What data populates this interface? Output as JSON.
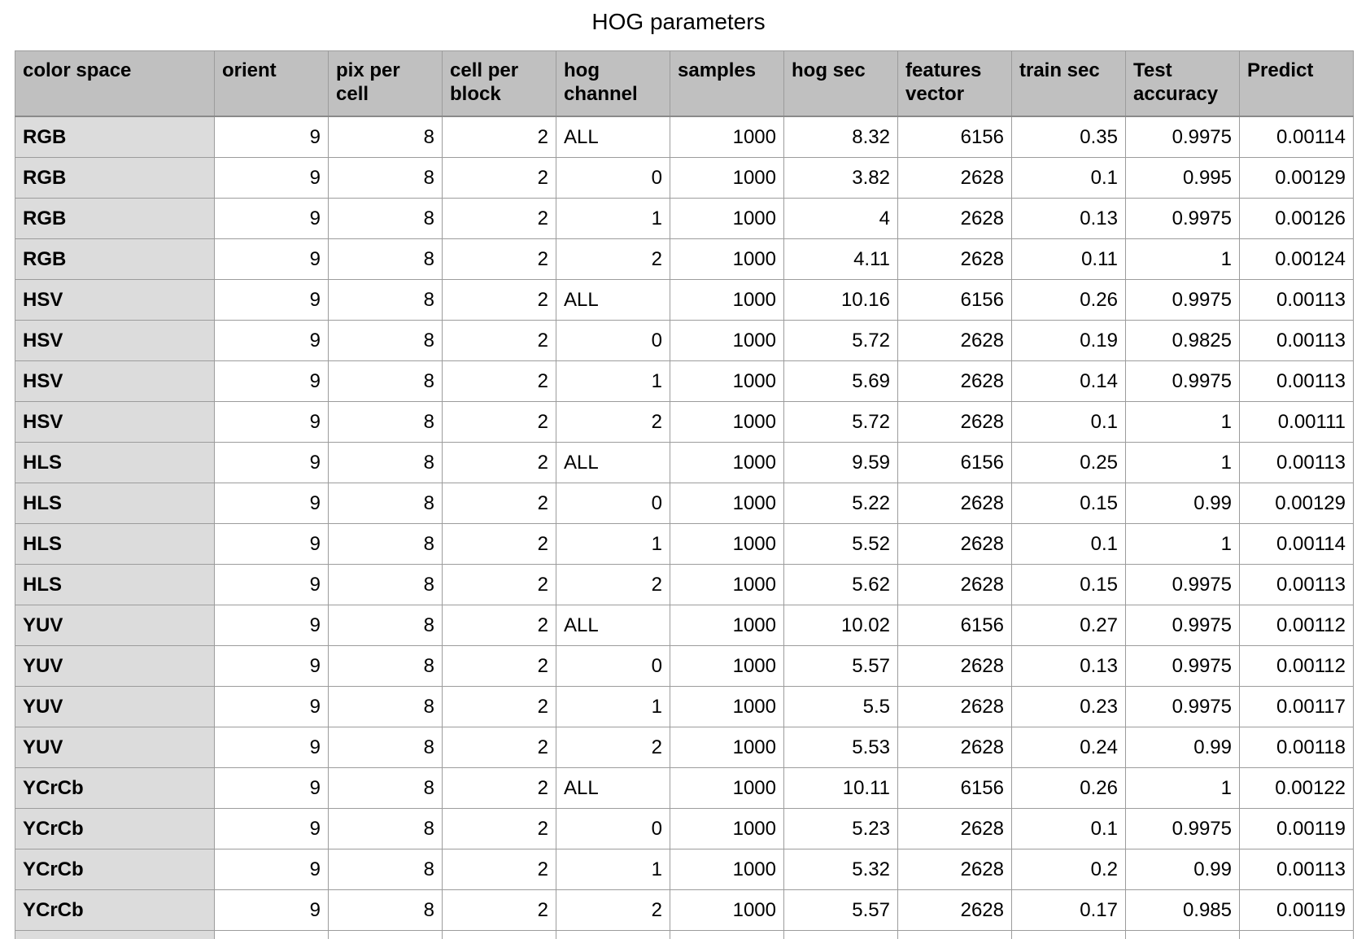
{
  "title": "HOG parameters",
  "headers": [
    "color space",
    "orient",
    "pix per cell",
    "cell per block",
    "hog channel",
    "samples",
    "hog sec",
    "features vector",
    "train sec",
    "Test accuracy",
    "Predict"
  ],
  "rows": [
    [
      "RGB",
      "9",
      "8",
      "2",
      "ALL",
      "1000",
      "8.32",
      "6156",
      "0.35",
      "0.9975",
      "0.00114"
    ],
    [
      "RGB",
      "9",
      "8",
      "2",
      "0",
      "1000",
      "3.82",
      "2628",
      "0.1",
      "0.995",
      "0.00129"
    ],
    [
      "RGB",
      "9",
      "8",
      "2",
      "1",
      "1000",
      "4",
      "2628",
      "0.13",
      "0.9975",
      "0.00126"
    ],
    [
      "RGB",
      "9",
      "8",
      "2",
      "2",
      "1000",
      "4.11",
      "2628",
      "0.11",
      "1",
      "0.00124"
    ],
    [
      "HSV",
      "9",
      "8",
      "2",
      "ALL",
      "1000",
      "10.16",
      "6156",
      "0.26",
      "0.9975",
      "0.00113"
    ],
    [
      "HSV",
      "9",
      "8",
      "2",
      "0",
      "1000",
      "5.72",
      "2628",
      "0.19",
      "0.9825",
      "0.00113"
    ],
    [
      "HSV",
      "9",
      "8",
      "2",
      "1",
      "1000",
      "5.69",
      "2628",
      "0.14",
      "0.9975",
      "0.00113"
    ],
    [
      "HSV",
      "9",
      "8",
      "2",
      "2",
      "1000",
      "5.72",
      "2628",
      "0.1",
      "1",
      "0.00111"
    ],
    [
      "HLS",
      "9",
      "8",
      "2",
      "ALL",
      "1000",
      "9.59",
      "6156",
      "0.25",
      "1",
      "0.00113"
    ],
    [
      "HLS",
      "9",
      "8",
      "2",
      "0",
      "1000",
      "5.22",
      "2628",
      "0.15",
      "0.99",
      "0.00129"
    ],
    [
      "HLS",
      "9",
      "8",
      "2",
      "1",
      "1000",
      "5.52",
      "2628",
      "0.1",
      "1",
      "0.00114"
    ],
    [
      "HLS",
      "9",
      "8",
      "2",
      "2",
      "1000",
      "5.62",
      "2628",
      "0.15",
      "0.9975",
      "0.00113"
    ],
    [
      "YUV",
      "9",
      "8",
      "2",
      "ALL",
      "1000",
      "10.02",
      "6156",
      "0.27",
      "0.9975",
      "0.00112"
    ],
    [
      "YUV",
      "9",
      "8",
      "2",
      "0",
      "1000",
      "5.57",
      "2628",
      "0.13",
      "0.9975",
      "0.00112"
    ],
    [
      "YUV",
      "9",
      "8",
      "2",
      "1",
      "1000",
      "5.5",
      "2628",
      "0.23",
      "0.9975",
      "0.00117"
    ],
    [
      "YUV",
      "9",
      "8",
      "2",
      "2",
      "1000",
      "5.53",
      "2628",
      "0.24",
      "0.99",
      "0.00118"
    ],
    [
      "YCrCb",
      "9",
      "8",
      "2",
      "ALL",
      "1000",
      "10.11",
      "6156",
      "0.26",
      "1",
      "0.00122"
    ],
    [
      "YCrCb",
      "9",
      "8",
      "2",
      "0",
      "1000",
      "5.23",
      "2628",
      "0.1",
      "0.9975",
      "0.00119"
    ],
    [
      "YCrCb",
      "9",
      "8",
      "2",
      "1",
      "1000",
      "5.32",
      "2628",
      "0.2",
      "0.99",
      "0.00113"
    ],
    [
      "YCrCb",
      "9",
      "8",
      "2",
      "2",
      "1000",
      "5.57",
      "2628",
      "0.17",
      "0.985",
      "0.00119"
    ]
  ]
}
